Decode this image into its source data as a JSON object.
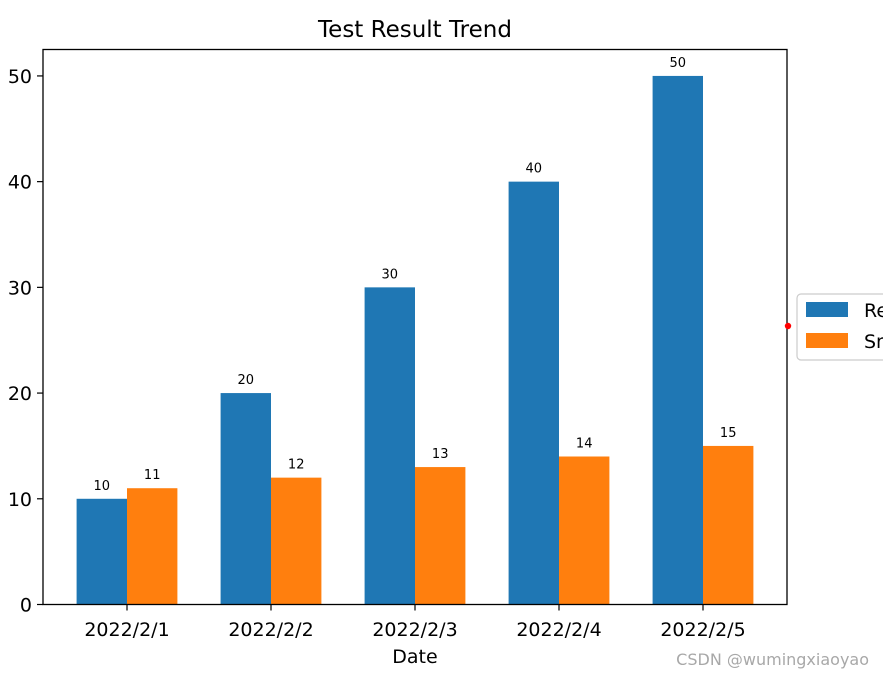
{
  "chart_data": {
    "type": "bar",
    "title": "Test Result Trend",
    "xlabel": "Date",
    "ylabel": "",
    "categories": [
      "2022/2/1",
      "2022/2/2",
      "2022/2/3",
      "2022/2/4",
      "2022/2/5"
    ],
    "series": [
      {
        "name": "Re",
        "color": "#1f77b4",
        "values": [
          10,
          20,
          30,
          40,
          50
        ]
      },
      {
        "name": "Sm",
        "color": "#ff7f0e",
        "values": [
          11,
          12,
          13,
          14,
          15
        ]
      }
    ],
    "ylim": [
      0,
      52.5
    ],
    "yticks": [
      0,
      10,
      20,
      30,
      40,
      50
    ],
    "grid": false,
    "legend_position": "right (clipped)",
    "data_labels": true
  },
  "watermark": "CSDN @wumingxiaoyao",
  "colors": {
    "marker": "#ff0000"
  }
}
